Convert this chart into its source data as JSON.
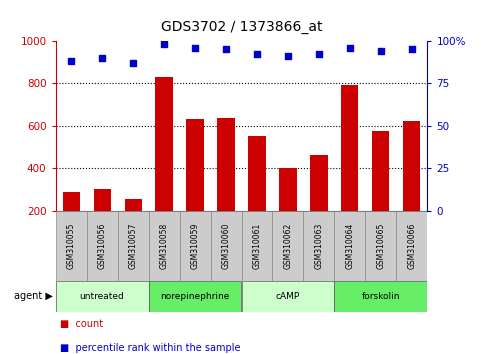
{
  "title": "GDS3702 / 1373866_at",
  "samples": [
    "GSM310055",
    "GSM310056",
    "GSM310057",
    "GSM310058",
    "GSM310059",
    "GSM310060",
    "GSM310061",
    "GSM310062",
    "GSM310063",
    "GSM310064",
    "GSM310065",
    "GSM310066"
  ],
  "counts": [
    290,
    300,
    255,
    830,
    630,
    635,
    550,
    400,
    460,
    790,
    575,
    620
  ],
  "percentiles": [
    88,
    90,
    87,
    98,
    96,
    95,
    92,
    91,
    92,
    96,
    94,
    95
  ],
  "bar_color": "#cc0000",
  "dot_color": "#0000cc",
  "ylim_left": [
    200,
    1000
  ],
  "ylim_right": [
    0,
    100
  ],
  "yticks_left": [
    200,
    400,
    600,
    800,
    1000
  ],
  "yticks_right": [
    0,
    25,
    50,
    75,
    100
  ],
  "ytick_labels_right": [
    "0",
    "25",
    "50",
    "75",
    "100%"
  ],
  "groups": [
    {
      "label": "untreated",
      "start": 0,
      "end": 3,
      "color": "#ccffcc"
    },
    {
      "label": "norepinephrine",
      "start": 3,
      "end": 6,
      "color": "#66ee66"
    },
    {
      "label": "cAMP",
      "start": 6,
      "end": 9,
      "color": "#ccffcc"
    },
    {
      "label": "forskolin",
      "start": 9,
      "end": 12,
      "color": "#66ee66"
    }
  ],
  "agent_label": "agent",
  "legend_count_label": "count",
  "legend_pct_label": "percentile rank within the sample",
  "tick_label_color_left": "#cc0000",
  "tick_label_color_right": "#0000cc",
  "sample_bg_color": "#cccccc",
  "title_fontsize": 10
}
